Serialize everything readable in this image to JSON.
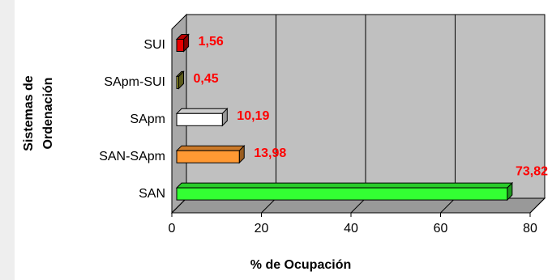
{
  "chart_data": {
    "type": "bar3d_horizontal",
    "categories": [
      "SUI",
      "SApm-SUI",
      "SApm",
      "SAN-SApm",
      "SAN"
    ],
    "values": [
      1.56,
      0.45,
      10.19,
      13.98,
      73.82
    ],
    "value_labels": [
      "1,56",
      "0,45",
      "10,19",
      "13,98",
      "73,82"
    ],
    "colors": [
      "#e80000",
      "#99992e",
      "#ffffff",
      "#ff9933",
      "#33ff33"
    ],
    "xlabel": "% de Ocupación",
    "ylabel": [
      "Sistemas de",
      "Ordenación"
    ],
    "xlim": [
      0,
      80
    ],
    "xticks": [
      0,
      20,
      40,
      60,
      80
    ],
    "grid": true
  }
}
